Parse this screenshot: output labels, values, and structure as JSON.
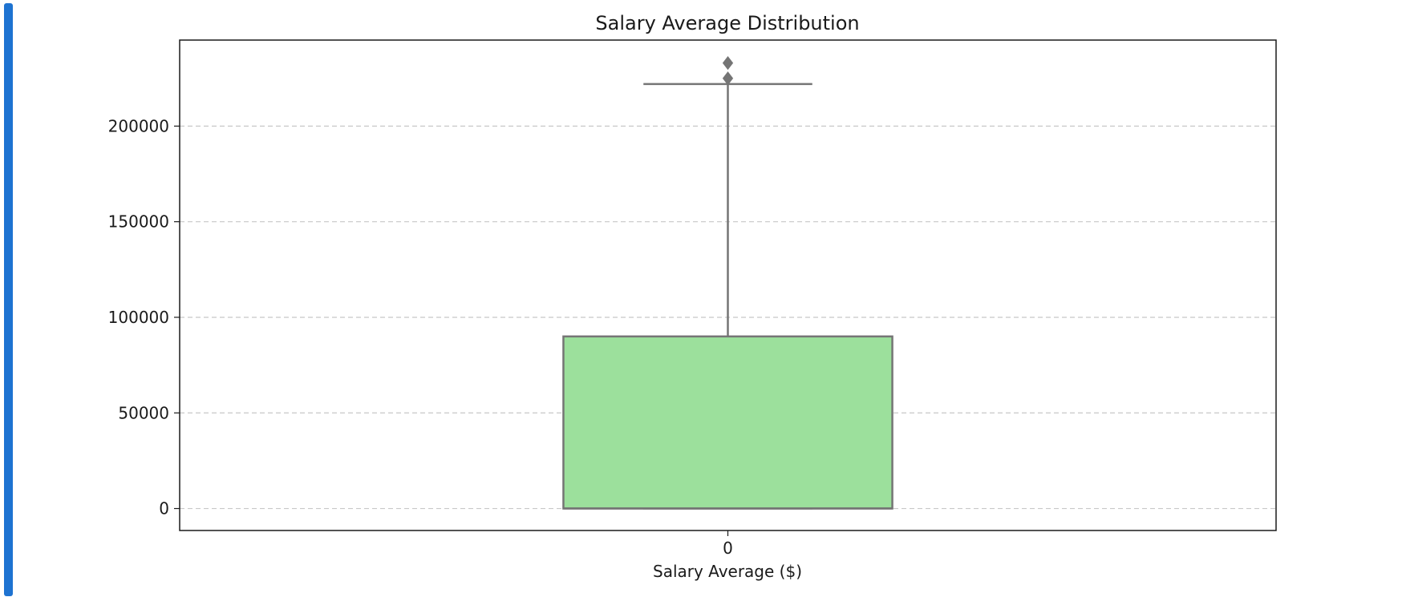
{
  "colors": {
    "accent": "#1e73d1",
    "box_fill": "#9ce09c",
    "box_edge": "#757575",
    "grid": "#c8c8c8",
    "frame": "#1a1a1a"
  },
  "chart_data": {
    "type": "boxplot",
    "title": "Salary Average Distribution",
    "xlabel": "Salary Average ($)",
    "ylabel": "",
    "categories": [
      "0"
    ],
    "ylim": [
      -11500,
      245000
    ],
    "yticks": [
      0,
      50000,
      100000,
      150000,
      200000
    ],
    "ytick_labels": [
      "0",
      "50000",
      "100000",
      "150000",
      "200000"
    ],
    "grid": "horizontal-dashed",
    "boxes": [
      {
        "category": "0",
        "whisker_low": 0,
        "q1": 0,
        "median": 0,
        "q3": 90000,
        "whisker_high": 222000,
        "outliers": [
          225000,
          233000
        ]
      }
    ]
  }
}
